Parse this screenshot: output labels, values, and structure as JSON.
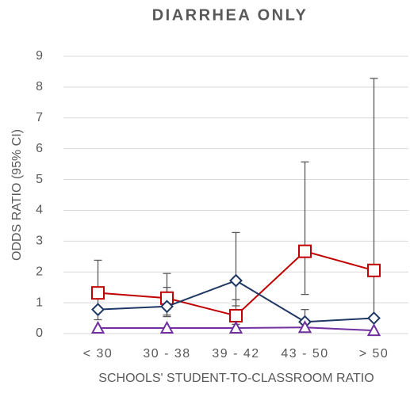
{
  "chart_data": {
    "type": "line",
    "title": "DIARRHEA ONLY",
    "x_label": "SCHOOLS' STUDENT-TO-CLASSROOM RATIO",
    "y_label": "ODDS RATIO (95% CI)",
    "categories": [
      "< 30",
      "30 - 38",
      "39 - 42",
      "43 - 50",
      "> 50"
    ],
    "ylim": [
      0,
      9
    ],
    "yticks": [
      0,
      1,
      2,
      3,
      4,
      5,
      6,
      7,
      8,
      9
    ],
    "grid": true,
    "error_color": "#595959",
    "series": [
      {
        "color": "#c00000",
        "marker": "square",
        "values": [
          1.32,
          1.15,
          0.58,
          2.67,
          2.05
        ],
        "ci_low": [
          0.45,
          0.6,
          0.3,
          1.27,
          0.5
        ],
        "ci_high": [
          2.38,
          1.95,
          1.1,
          5.57,
          8.28
        ]
      },
      {
        "color": "#1f3864",
        "marker": "diamond",
        "values": [
          0.78,
          0.88,
          1.72,
          0.38,
          0.5
        ],
        "ci_low": [
          null,
          0.55,
          0.9,
          null,
          null
        ],
        "ci_high": [
          null,
          1.5,
          3.28,
          0.78,
          null
        ]
      },
      {
        "color": "#7030a0",
        "marker": "triangle",
        "values": [
          0.18,
          0.18,
          0.18,
          0.2,
          0.1
        ],
        "ci_low": [
          null,
          null,
          null,
          null,
          null
        ],
        "ci_high": [
          null,
          null,
          null,
          null,
          null
        ]
      }
    ]
  }
}
